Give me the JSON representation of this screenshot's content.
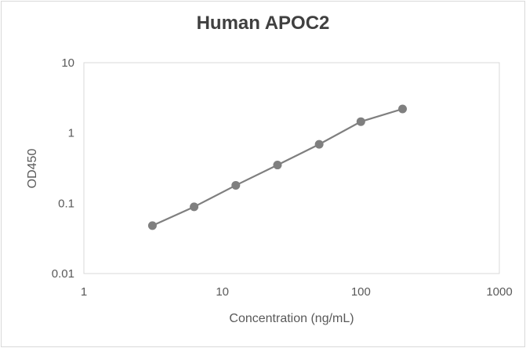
{
  "chart_data": {
    "type": "line",
    "title": "Human APOC2",
    "xlabel": "Concentration (ng/mL)",
    "ylabel": "OD450",
    "xscale": "log",
    "yscale": "log",
    "xlim": [
      1,
      1000
    ],
    "ylim": [
      0.01,
      10
    ],
    "xticks": [
      "1",
      "10",
      "100",
      "1000"
    ],
    "yticks": [
      "10",
      "1",
      "0.1",
      "0.01"
    ],
    "grid": false,
    "legend": null,
    "series": [
      {
        "name": "Human APOC2",
        "color": "#7f7f7f",
        "marker": "circle",
        "x": [
          3.125,
          6.25,
          12.5,
          25,
          50,
          100,
          200
        ],
        "y": [
          0.048,
          0.089,
          0.18,
          0.35,
          0.69,
          1.45,
          2.2
        ]
      }
    ]
  }
}
